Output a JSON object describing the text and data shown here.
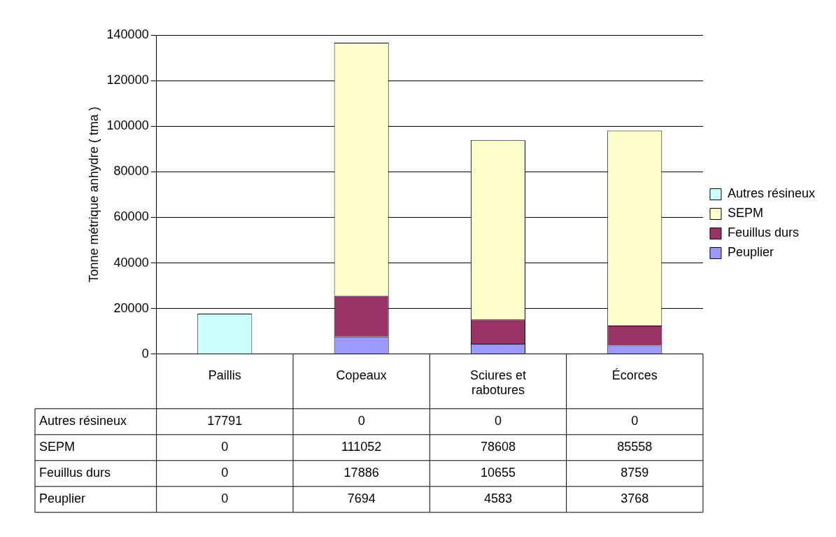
{
  "chart_data": {
    "type": "bar",
    "stacked": true,
    "ylabel": "Tonne métrique anhydre ( tma )",
    "categories": [
      "Paillis",
      "Copeaux",
      "Sciures et rabotures",
      "Écorces"
    ],
    "series": [
      {
        "name": "Peuplier",
        "color": "#9999ff",
        "values": [
          0,
          7694,
          4583,
          3768
        ]
      },
      {
        "name": "Feuillus durs",
        "color": "#993366",
        "values": [
          0,
          17886,
          10655,
          8759
        ]
      },
      {
        "name": "SEPM",
        "color": "#ffffcc",
        "values": [
          0,
          111052,
          78608,
          85558
        ]
      },
      {
        "name": "Autres résineux",
        "color": "#ccffff",
        "values": [
          17791,
          0,
          0,
          0
        ]
      }
    ],
    "ylim": [
      0,
      140000
    ],
    "yticks": [
      0,
      20000,
      40000,
      60000,
      80000,
      100000,
      120000,
      140000
    ],
    "grid": "y",
    "legend": "right",
    "data_labels": true
  }
}
